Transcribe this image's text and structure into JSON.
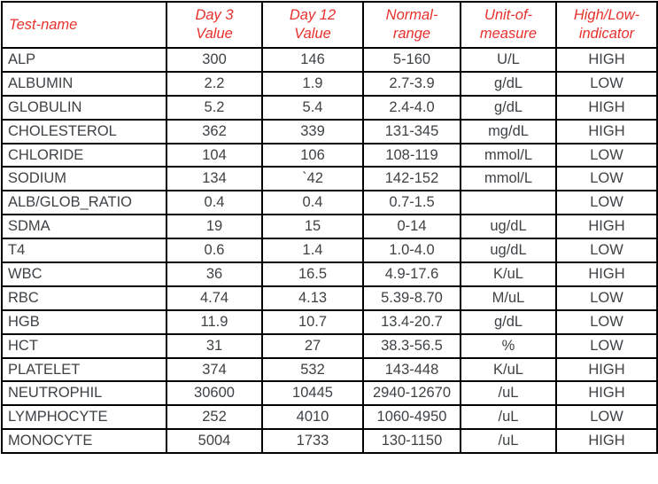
{
  "chart_data": {
    "type": "table",
    "title": "",
    "columns": [
      "Test-name",
      "Day 3 Value",
      "Day 12 Value",
      "Normal-range",
      "Unit-of-measure",
      "High/Low-indicator"
    ],
    "rows": [
      [
        "ALP",
        "300",
        "146",
        "5-160",
        "U/L",
        "HIGH"
      ],
      [
        "ALBUMIN",
        "2.2",
        "1.9",
        "2.7-3.9",
        "g/dL",
        "LOW"
      ],
      [
        "GLOBULIN",
        "5.2",
        "5.4",
        "2.4-4.0",
        "g/dL",
        "HIGH"
      ],
      [
        "CHOLESTEROL",
        "362",
        "339",
        "131-345",
        "mg/dL",
        "HIGH"
      ],
      [
        "CHLORIDE",
        "104",
        "106",
        "108-119",
        "mmol/L",
        "LOW"
      ],
      [
        "SODIUM",
        "134",
        "`42",
        "142-152",
        "mmol/L",
        "LOW"
      ],
      [
        "ALB/GLOB_RATIO",
        "0.4",
        "0.4",
        "0.7-1.5",
        "",
        "LOW"
      ],
      [
        "SDMA",
        "19",
        "15",
        "0-14",
        "ug/dL",
        "HIGH"
      ],
      [
        "T4",
        "0.6",
        "1.4",
        "1.0-4.0",
        "ug/dL",
        "LOW"
      ],
      [
        "WBC",
        "36",
        "16.5",
        "4.9-17.6",
        "K/uL",
        "HIGH"
      ],
      [
        "RBC",
        "4.74",
        "4.13",
        "5.39-8.70",
        "M/uL",
        "LOW"
      ],
      [
        "HGB",
        "11.9",
        "10.7",
        "13.4-20.7",
        "g/dL",
        "LOW"
      ],
      [
        "HCT",
        "31",
        "27",
        "38.3-56.5",
        "%",
        "LOW"
      ],
      [
        "PLATELET",
        "374",
        "532",
        "143-448",
        "K/uL",
        "HIGH"
      ],
      [
        "NEUTROPHIL",
        "30600",
        "10445",
        "2940-12670",
        "/uL",
        "HIGH"
      ],
      [
        "LYMPHOCYTE",
        "252",
        "4010",
        "1060-4950",
        "/uL",
        "LOW"
      ],
      [
        "MONOCYTE",
        "5004",
        "1733",
        "130-1150",
        "/uL",
        "HIGH"
      ]
    ]
  },
  "header": {
    "cells": [
      {
        "line1": "Test-name",
        "line2": ""
      },
      {
        "line1": "Day 3",
        "line2": "Value"
      },
      {
        "line1": "Day 12",
        "line2": "Value"
      },
      {
        "line1": "Normal-",
        "line2": "range"
      },
      {
        "line1": "Unit-of-",
        "line2": "measure"
      },
      {
        "line1": "High/Low-",
        "line2": "indicator"
      }
    ]
  },
  "colors": {
    "header_text": "#e8312d",
    "body_text": "#3e4245",
    "border_color": "#000000",
    "bg": "#ffffff"
  }
}
